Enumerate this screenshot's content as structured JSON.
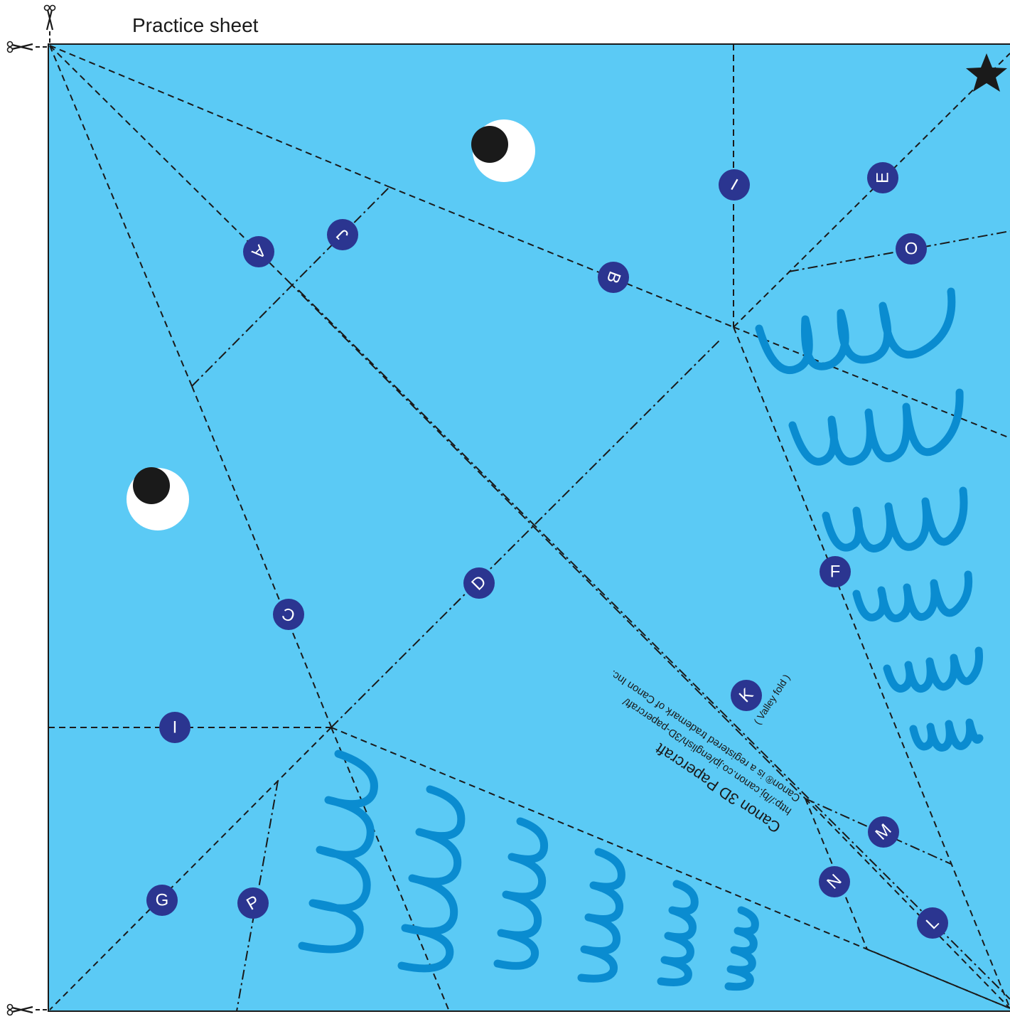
{
  "title": "Practice sheet",
  "colors": {
    "paper": "#5bcaf5",
    "wave": "#0a8cd0",
    "label_bg": "#2b3590",
    "line": "#1a1a1a"
  },
  "icons": {
    "scissors_top": "scissors-icon",
    "scissors_left": "scissors-icon",
    "star": "star-icon"
  },
  "labels": {
    "A": "A",
    "B": "B",
    "C": "C",
    "D": "D",
    "E": "E",
    "F": "F",
    "G": "G",
    "I": "I",
    "J": "J",
    "K": "K",
    "L": "L",
    "M": "M",
    "N": "N",
    "O": "O",
    "P": "P"
  },
  "valley_fold": "( Valley fold )",
  "credits": {
    "name": "Canon 3D Papercraft",
    "url": "http://bj.canon.co.jp/english/3D-papercraft/",
    "trademark": "Canon® is a registered trademark of Canon Inc."
  }
}
